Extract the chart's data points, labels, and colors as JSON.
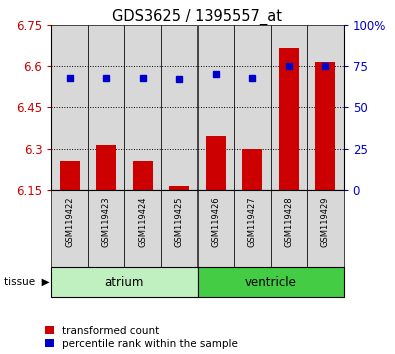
{
  "title": "GDS3625 / 1395557_at",
  "samples": [
    "GSM119422",
    "GSM119423",
    "GSM119424",
    "GSM119425",
    "GSM119426",
    "GSM119427",
    "GSM119428",
    "GSM119429"
  ],
  "bar_values": [
    6.255,
    6.315,
    6.255,
    6.165,
    6.345,
    6.3,
    6.665,
    6.615
  ],
  "bar_base": 6.15,
  "dot_values": [
    68,
    68,
    68,
    67,
    70,
    68,
    75,
    75
  ],
  "groups": [
    {
      "label": "atrium",
      "indices": [
        0,
        1,
        2,
        3
      ],
      "color": "#c0f0c0"
    },
    {
      "label": "ventricle",
      "indices": [
        4,
        5,
        6,
        7
      ],
      "color": "#44cc44"
    }
  ],
  "ylim_left": [
    6.15,
    6.75
  ],
  "ylim_right": [
    0,
    100
  ],
  "yticks_left": [
    6.15,
    6.3,
    6.45,
    6.6,
    6.75
  ],
  "yticks_right": [
    0,
    25,
    50,
    75,
    100
  ],
  "ytick_labels_left": [
    "6.15",
    "6.3",
    "6.45",
    "6.6",
    "6.75"
  ],
  "ytick_labels_right": [
    "0",
    "25",
    "50",
    "75",
    "100%"
  ],
  "bar_color": "#cc0000",
  "dot_color": "#0000cc",
  "col_bg_color": "#d8d8d8",
  "grid_yticks": [
    6.3,
    6.45,
    6.6
  ],
  "legend_labels": [
    "transformed count",
    "percentile rank within the sample"
  ],
  "bar_width": 0.55,
  "figsize": [
    3.95,
    3.54
  ],
  "dpi": 100
}
